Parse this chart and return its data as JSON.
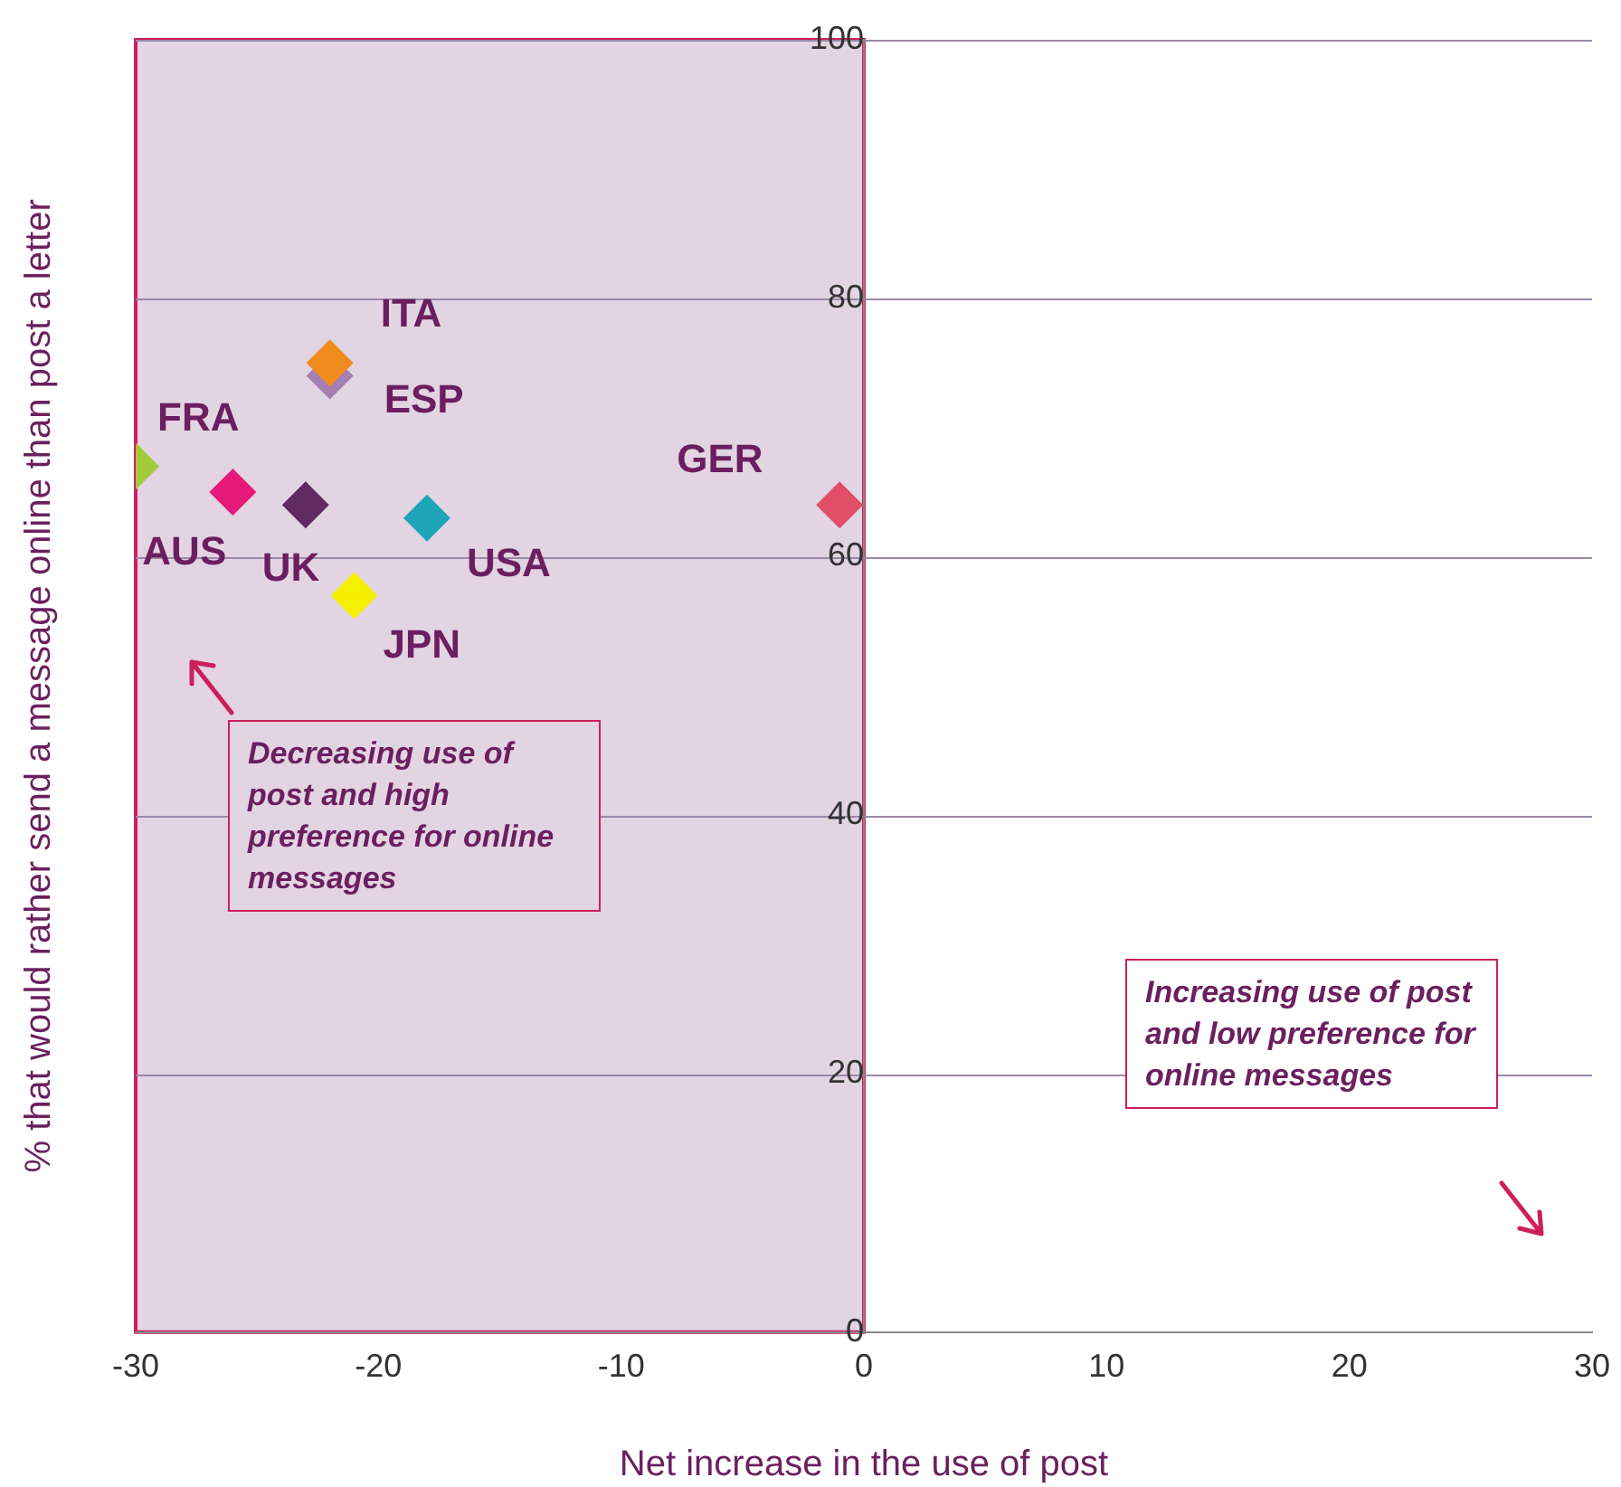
{
  "chart_data": {
    "type": "scatter",
    "xlabel": "Net increase in the use of post",
    "ylabel": "% that would rather send a message online than post a letter",
    "xlim": [
      -30,
      30
    ],
    "xticks": [
      -30,
      -20,
      -10,
      0,
      10,
      20,
      30
    ],
    "ylim": [
      0,
      100
    ],
    "yticks": [
      0,
      20,
      40,
      60,
      80,
      100
    ],
    "grid": "y",
    "legend": false,
    "marker": "diamond",
    "series": [
      {
        "name": "FRA",
        "color": "#a4c93a",
        "x": [
          -30
        ],
        "values": [
          67
        ]
      },
      {
        "name": "AUS",
        "color": "#e6187a",
        "x": [
          -26
        ],
        "values": [
          65
        ]
      },
      {
        "name": "UK",
        "color": "#5e2a60",
        "x": [
          -23
        ],
        "values": [
          64
        ]
      },
      {
        "name": "ITA",
        "color": "#f08c1e",
        "x": [
          -22
        ],
        "values": [
          75
        ]
      },
      {
        "name": "ESP",
        "color": "#a680b2",
        "x": [
          -22
        ],
        "values": [
          74
        ]
      },
      {
        "name": "USA",
        "color": "#1ea5b8",
        "x": [
          -18
        ],
        "values": [
          63
        ]
      },
      {
        "name": "JPN",
        "color": "#f5f000",
        "x": [
          -21
        ],
        "values": [
          57
        ]
      },
      {
        "name": "GER",
        "color": "#e04e68",
        "x": [
          -1
        ],
        "values": [
          64
        ]
      }
    ],
    "bands": [
      {
        "axis": "x",
        "from": -30,
        "to": 0,
        "color": "#e2d4e2"
      }
    ],
    "annotations": [
      "Decreasing use of post and high preference for online messages",
      "Increasing use of post and low preference for online messages"
    ]
  }
}
